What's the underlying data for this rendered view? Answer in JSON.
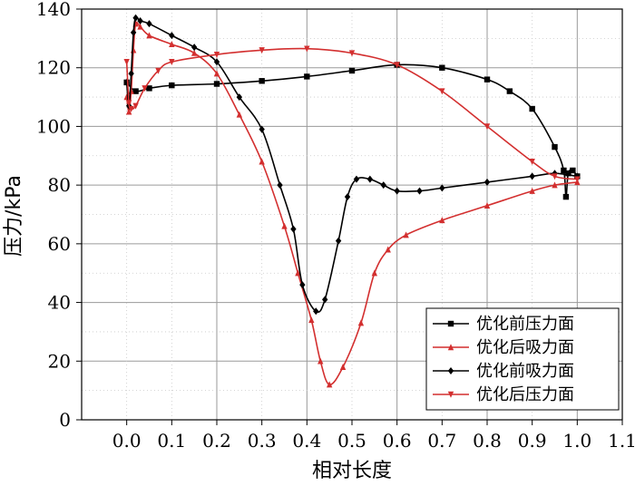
{
  "chart_data": {
    "type": "line",
    "title": "",
    "xlabel": "相对长度",
    "ylabel": "压力/kPa",
    "xlim": [
      -0.1,
      1.1
    ],
    "ylim": [
      0,
      140
    ],
    "xticks": [
      0.0,
      0.1,
      0.2,
      0.3,
      0.4,
      0.5,
      0.6,
      0.7,
      0.8,
      0.9,
      1.0,
      1.1
    ],
    "xtick_labels": [
      "0.0",
      "0.1",
      "0.2",
      "0.3",
      "0.4",
      "0.5",
      "0.6",
      "0.7",
      "0.8",
      "0.9",
      "1.0",
      "1.1"
    ],
    "yticks": [
      0,
      20,
      40,
      60,
      80,
      100,
      120,
      140
    ],
    "ytick_labels": [
      "0",
      "20",
      "40",
      "60",
      "80",
      "100",
      "120",
      "140"
    ],
    "grid": true,
    "legend_position": "bottom-right",
    "series": [
      {
        "name": "优化前压力面",
        "color": "#000000",
        "marker": "square",
        "points": [
          [
            0.0,
            115
          ],
          [
            0.02,
            112
          ],
          [
            0.05,
            113
          ],
          [
            0.1,
            114
          ],
          [
            0.2,
            114.5
          ],
          [
            0.3,
            115.5
          ],
          [
            0.4,
            117
          ],
          [
            0.5,
            119
          ],
          [
            0.6,
            121
          ],
          [
            0.7,
            120
          ],
          [
            0.8,
            116
          ],
          [
            0.85,
            112
          ],
          [
            0.9,
            106
          ],
          [
            0.95,
            93
          ],
          [
            0.97,
            85
          ],
          [
            0.975,
            76
          ],
          [
            0.98,
            84
          ],
          [
            0.99,
            85
          ],
          [
            1.0,
            83
          ]
        ]
      },
      {
        "name": "优化后吸力面",
        "color": "#d32f2f",
        "marker": "triangle-up",
        "points": [
          [
            0.0,
            110
          ],
          [
            0.005,
            105
          ],
          [
            0.01,
            112
          ],
          [
            0.015,
            126
          ],
          [
            0.02,
            135
          ],
          [
            0.03,
            134
          ],
          [
            0.05,
            131
          ],
          [
            0.1,
            128
          ],
          [
            0.15,
            125
          ],
          [
            0.2,
            118
          ],
          [
            0.25,
            104
          ],
          [
            0.3,
            88
          ],
          [
            0.35,
            66
          ],
          [
            0.38,
            50
          ],
          [
            0.41,
            34
          ],
          [
            0.43,
            20
          ],
          [
            0.45,
            12
          ],
          [
            0.48,
            18
          ],
          [
            0.52,
            33
          ],
          [
            0.55,
            50
          ],
          [
            0.58,
            58
          ],
          [
            0.62,
            63
          ],
          [
            0.7,
            68
          ],
          [
            0.8,
            73
          ],
          [
            0.9,
            78
          ],
          [
            0.95,
            80
          ],
          [
            1.0,
            81
          ]
        ]
      },
      {
        "name": "优化前吸力面",
        "color": "#000000",
        "marker": "diamond",
        "points": [
          [
            0.0,
            115
          ],
          [
            0.005,
            107
          ],
          [
            0.01,
            118
          ],
          [
            0.015,
            132
          ],
          [
            0.02,
            137
          ],
          [
            0.03,
            136
          ],
          [
            0.05,
            135
          ],
          [
            0.1,
            131
          ],
          [
            0.15,
            127
          ],
          [
            0.2,
            122
          ],
          [
            0.25,
            110
          ],
          [
            0.3,
            99
          ],
          [
            0.34,
            80
          ],
          [
            0.37,
            65
          ],
          [
            0.39,
            46
          ],
          [
            0.42,
            37
          ],
          [
            0.44,
            41
          ],
          [
            0.47,
            61
          ],
          [
            0.49,
            76
          ],
          [
            0.51,
            82
          ],
          [
            0.54,
            82
          ],
          [
            0.57,
            80
          ],
          [
            0.6,
            78
          ],
          [
            0.65,
            78
          ],
          [
            0.7,
            79
          ],
          [
            0.8,
            81
          ],
          [
            0.9,
            83
          ],
          [
            0.95,
            84
          ],
          [
            1.0,
            83
          ]
        ]
      },
      {
        "name": "优化后压力面",
        "color": "#d32f2f",
        "marker": "triangle-down",
        "points": [
          [
            0.0,
            122
          ],
          [
            0.005,
            108
          ],
          [
            0.01,
            106
          ],
          [
            0.02,
            107
          ],
          [
            0.04,
            113
          ],
          [
            0.07,
            119
          ],
          [
            0.1,
            122
          ],
          [
            0.2,
            124.5
          ],
          [
            0.3,
            126
          ],
          [
            0.4,
            126.5
          ],
          [
            0.5,
            125
          ],
          [
            0.6,
            121
          ],
          [
            0.7,
            112
          ],
          [
            0.8,
            100
          ],
          [
            0.9,
            88
          ],
          [
            0.95,
            83
          ],
          [
            1.0,
            82
          ]
        ]
      }
    ]
  }
}
